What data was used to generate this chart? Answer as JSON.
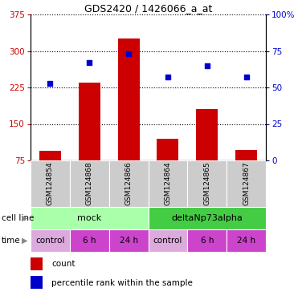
{
  "title": "GDS2420 / 1426066_a_at",
  "samples": [
    "GSM124854",
    "GSM124868",
    "GSM124866",
    "GSM124864",
    "GSM124865",
    "GSM124867"
  ],
  "bar_values": [
    95,
    235,
    325,
    120,
    180,
    97
  ],
  "dot_values_pct": [
    53,
    67,
    73,
    57,
    65,
    57
  ],
  "bar_color": "#cc0000",
  "dot_color": "#0000cc",
  "ylim_left": [
    75,
    375
  ],
  "ylim_right": [
    0,
    100
  ],
  "yticks_left": [
    75,
    150,
    225,
    300,
    375
  ],
  "ytick_labels_left": [
    "75",
    "150",
    "225",
    "300",
    "375"
  ],
  "yticks_right": [
    0,
    25,
    50,
    75,
    100
  ],
  "ytick_labels_right": [
    "0",
    "25",
    "50",
    "75",
    "100%"
  ],
  "left_axis_color": "#cc0000",
  "right_axis_color": "#0000cc",
  "cell_line_labels": [
    "mock",
    "deltaNp73alpha"
  ],
  "cell_line_spans": [
    [
      0,
      3
    ],
    [
      3,
      6
    ]
  ],
  "cell_line_colors": [
    "#aaffaa",
    "#44cc44"
  ],
  "time_labels": [
    "control",
    "6 h",
    "24 h",
    "control",
    "6 h",
    "24 h"
  ],
  "control_color": "#ddaadd",
  "other_time_color": "#cc44cc",
  "legend_count_color": "#cc0000",
  "legend_dot_color": "#0000cc",
  "bar_width": 0.55,
  "background_color": "#ffffff",
  "n_samples": 6,
  "gsm_box_color": "#cccccc",
  "title_fontsize": 9,
  "axis_label_fontsize": 7.5,
  "sample_fontsize": 6.5,
  "cell_fontsize": 8,
  "time_fontsize": 7.5,
  "legend_fontsize": 7.5
}
